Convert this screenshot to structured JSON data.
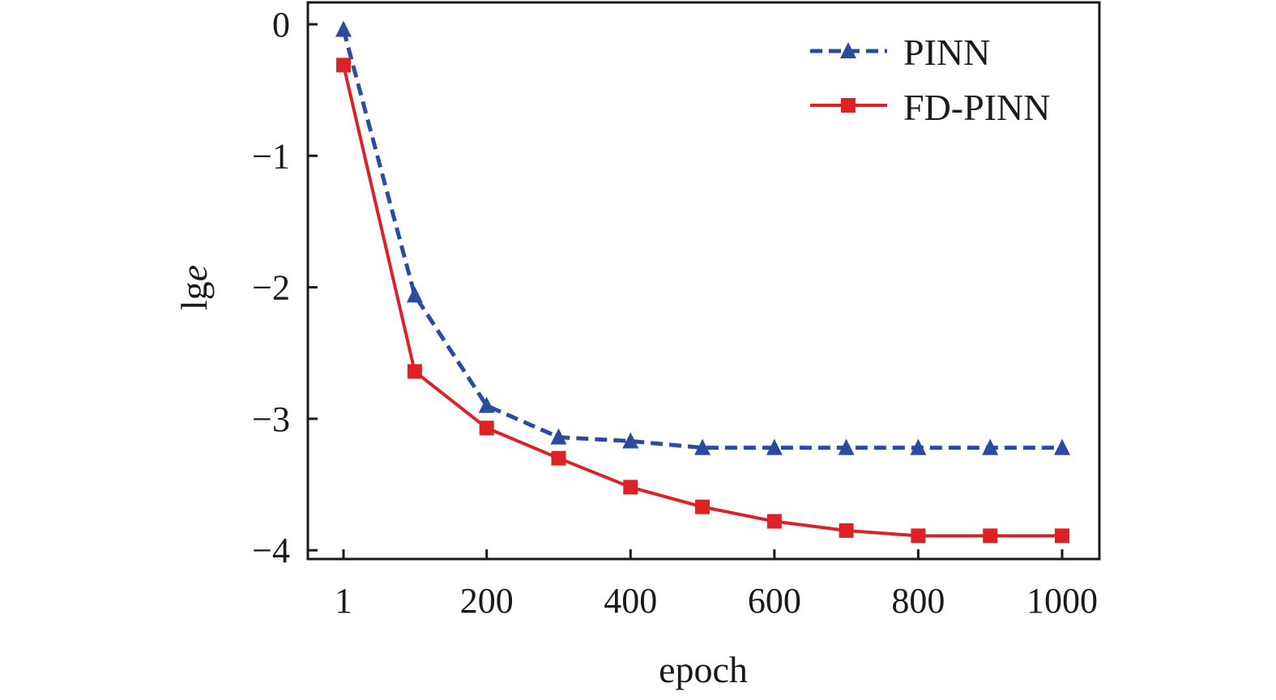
{
  "chart_data": {
    "type": "line",
    "title": "",
    "xlabel": "epoch",
    "ylabel_prefix": "lg",
    "ylabel_var": "e",
    "x": [
      1,
      100,
      200,
      300,
      400,
      500,
      600,
      700,
      800,
      900,
      1000
    ],
    "xlim": [
      -50,
      1050
    ],
    "ylim": [
      -4.05,
      0.17
    ],
    "xticks": [
      1,
      200,
      400,
      600,
      800,
      1000
    ],
    "xtick_labels": [
      "1",
      "200",
      "400",
      "600",
      "800",
      "1000"
    ],
    "yticks": [
      0,
      -1,
      -2,
      -3,
      -4
    ],
    "ytick_labels": [
      "0",
      "−1",
      "−2",
      "−3",
      "−4"
    ],
    "grid": false,
    "legend_position": "top-right",
    "series": [
      {
        "name": "PINN",
        "color": "#2b4ba0",
        "line": "dashed",
        "marker": "triangle",
        "values": [
          -0.04,
          -2.06,
          -2.9,
          -3.14,
          -3.17,
          -3.22,
          -3.22,
          -3.22,
          -3.22,
          -3.22,
          -3.22
        ]
      },
      {
        "name": "FD-PINN",
        "color": "#dc2127",
        "line": "solid",
        "marker": "square",
        "values": [
          -0.31,
          -2.64,
          -3.07,
          -3.3,
          -3.52,
          -3.67,
          -3.78,
          -3.85,
          -3.89,
          -3.89,
          -3.89
        ]
      }
    ]
  }
}
